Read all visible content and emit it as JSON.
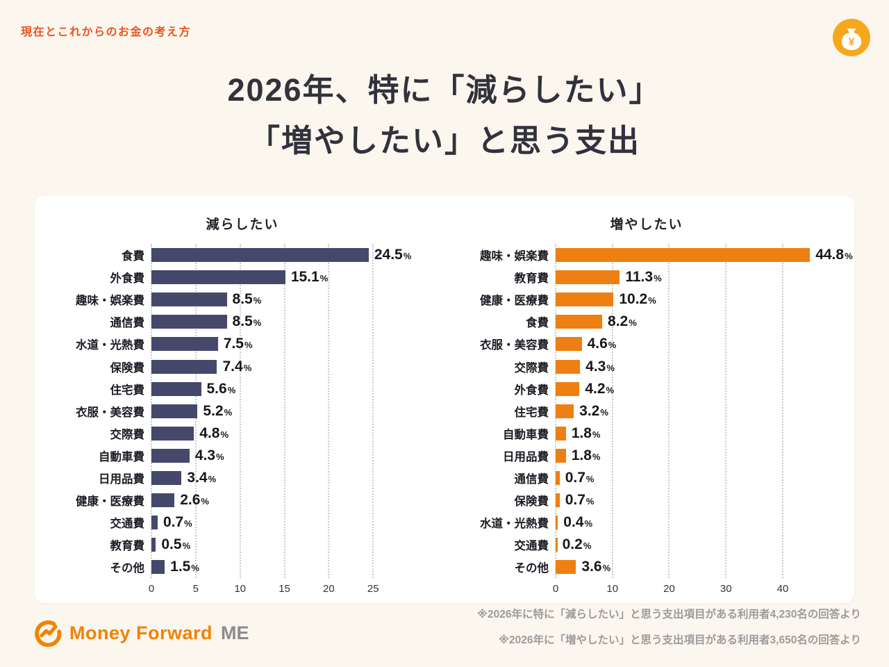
{
  "page": {
    "eyebrow": "現在とこれからのお金の考え方",
    "title_line1": "2026年、特に「減らしたい」",
    "title_line2": "「増やしたい」と思う支出"
  },
  "colors": {
    "background": "#FBF6EE",
    "accent_orange": "#F08300",
    "eyebrow_orange": "#EB541E",
    "icon_gold": "#F6A81C",
    "bar_navy": "#45486B",
    "bar_orange": "#EE7F12",
    "title_text": "#32323C",
    "note_gray": "#9B9B9B"
  },
  "chart_data": [
    {
      "type": "bar",
      "orientation": "horizontal",
      "title": "減らしたい",
      "bar_color": "#45486B",
      "unit": "%",
      "categories": [
        "食費",
        "外食費",
        "趣味・娯楽費",
        "通信費",
        "水道・光熱費",
        "保険費",
        "住宅費",
        "衣服・美容費",
        "交際費",
        "自動車費",
        "日用品費",
        "健康・医療費",
        "交通費",
        "教育費",
        "その他"
      ],
      "values": [
        24.5,
        15.1,
        8.5,
        8.5,
        7.5,
        7.4,
        5.6,
        5.2,
        4.8,
        4.3,
        3.4,
        2.6,
        0.7,
        0.5,
        1.5
      ],
      "xticks": [
        0,
        5,
        10,
        15,
        20,
        25
      ],
      "xmax": 26,
      "grid": "dotted-vertical",
      "legend": "none"
    },
    {
      "type": "bar",
      "orientation": "horizontal",
      "title": "増やしたい",
      "bar_color": "#EE7F12",
      "unit": "%",
      "categories": [
        "趣味・娯楽費",
        "教育費",
        "健康・医療費",
        "食費",
        "衣服・美容費",
        "交際費",
        "外食費",
        "住宅費",
        "自動車費",
        "日用品費",
        "通信費",
        "保険費",
        "水道・光熱費",
        "交通費",
        "その他"
      ],
      "values": [
        44.8,
        11.3,
        10.2,
        8.2,
        4.6,
        4.3,
        4.2,
        3.2,
        1.8,
        1.8,
        0.7,
        0.7,
        0.4,
        0.2,
        3.6
      ],
      "xticks": [
        0,
        10,
        20,
        30,
        40
      ],
      "xmax": 46,
      "grid": "dotted-vertical",
      "legend": "none"
    }
  ],
  "footer": {
    "logo_text_main": "Money Forward",
    "logo_text_me": "ME",
    "note1": "※2026年に特に「減らしたい」と思う支出項目がある利用者4,230名の回答より",
    "note2": "※2026年に「増やしたい」と思う支出項目がある利用者3,650名の回答より"
  }
}
